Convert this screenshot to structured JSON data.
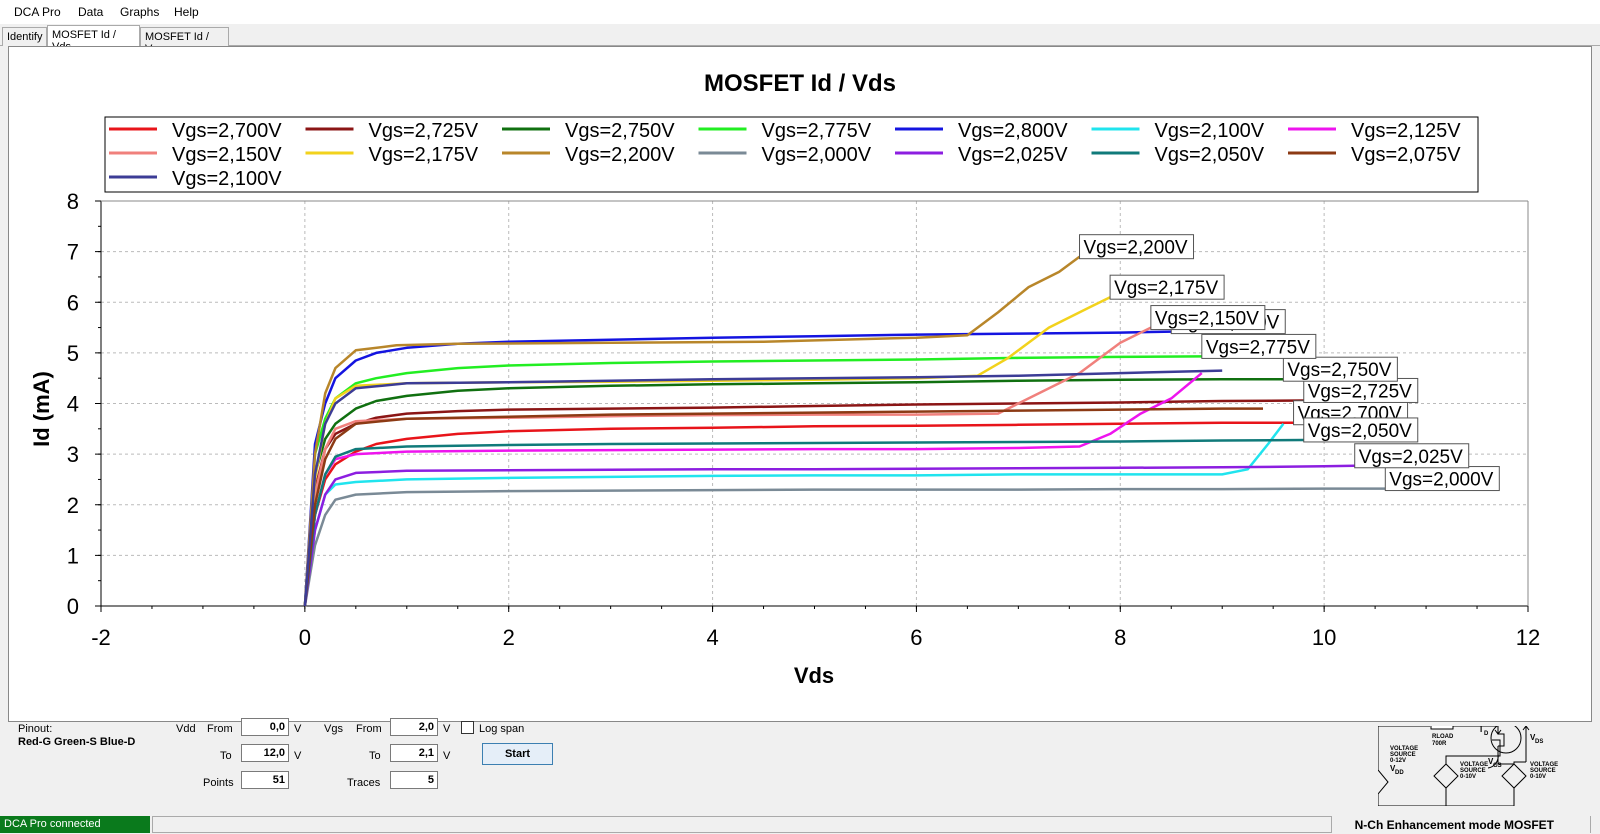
{
  "menu": {
    "items": [
      "DCA Pro",
      "Data",
      "Graphs",
      "Help"
    ]
  },
  "tabs": [
    "Identify",
    "MOSFET Id / Vds",
    "MOSFET Id / Vgs"
  ],
  "active_tab": 1,
  "chart_data": {
    "type": "line",
    "title": "MOSFET Id / Vds",
    "xlabel": "Vds",
    "ylabel": "Id (mA)",
    "xlim": [
      -2,
      12
    ],
    "ylim": [
      0,
      8
    ],
    "xticks": [
      -2,
      0,
      2,
      4,
      6,
      8,
      10,
      12
    ],
    "yticks": [
      0,
      1,
      2,
      3,
      4,
      5,
      6,
      7,
      8
    ],
    "grid": true,
    "legend_position": "top",
    "series": [
      {
        "name": "Vgs=2,700V",
        "color": "#e8141a",
        "label": "Vgs=2,700V",
        "x": [
          0,
          0.1,
          0.2,
          0.3,
          0.5,
          0.7,
          1,
          1.5,
          2,
          3,
          4,
          5,
          6,
          7,
          8,
          9,
          9.7
        ],
        "y": [
          0,
          1.8,
          2.5,
          2.8,
          3.05,
          3.2,
          3.3,
          3.4,
          3.45,
          3.5,
          3.52,
          3.55,
          3.56,
          3.58,
          3.6,
          3.62,
          3.62
        ]
      },
      {
        "name": "Vgs=2,725V",
        "color": "#8b1515",
        "label": "Vgs=2,725V",
        "x": [
          0,
          0.1,
          0.2,
          0.3,
          0.5,
          0.7,
          1,
          1.5,
          2,
          3,
          4,
          5,
          6,
          7,
          8,
          9,
          9.8
        ],
        "y": [
          0,
          2.3,
          3.1,
          3.4,
          3.6,
          3.72,
          3.8,
          3.85,
          3.88,
          3.9,
          3.92,
          3.95,
          3.98,
          4.0,
          4.02,
          4.05,
          4.06
        ]
      },
      {
        "name": "Vgs=2,750V",
        "color": "#107010",
        "label": "Vgs=2,750V",
        "x": [
          0,
          0.1,
          0.2,
          0.3,
          0.5,
          0.7,
          1,
          1.5,
          2,
          3,
          4,
          5,
          6,
          7,
          8,
          9,
          9.6
        ],
        "y": [
          0,
          2.6,
          3.3,
          3.6,
          3.9,
          4.05,
          4.15,
          4.25,
          4.3,
          4.35,
          4.38,
          4.4,
          4.42,
          4.45,
          4.47,
          4.48,
          4.48
        ]
      },
      {
        "name": "Vgs=2,775V",
        "color": "#22ee22",
        "label": "Vgs=2,775V",
        "x": [
          0,
          0.1,
          0.2,
          0.3,
          0.5,
          0.7,
          1,
          1.5,
          2,
          3,
          4,
          5,
          6,
          7,
          8,
          8.8
        ],
        "y": [
          0,
          3.0,
          3.7,
          4.1,
          4.4,
          4.5,
          4.6,
          4.7,
          4.75,
          4.8,
          4.83,
          4.85,
          4.87,
          4.9,
          4.92,
          4.93
        ]
      },
      {
        "name": "Vgs=2,800V",
        "color": "#1414e0",
        "label": "Vgs=2,800V",
        "x": [
          0,
          0.1,
          0.2,
          0.3,
          0.5,
          0.7,
          1,
          1.5,
          2,
          3,
          4,
          5,
          6,
          7,
          8,
          8.5
        ],
        "y": [
          0,
          3.2,
          4.0,
          4.5,
          4.85,
          5.0,
          5.1,
          5.18,
          5.22,
          5.26,
          5.3,
          5.33,
          5.36,
          5.38,
          5.4,
          5.42
        ]
      },
      {
        "name": "Vgs=2,100V",
        "color": "#20e4ee",
        "label": "",
        "x": [
          0,
          0.1,
          0.2,
          0.3,
          0.5,
          1,
          2,
          3,
          4,
          5,
          6,
          7,
          8,
          9,
          9.25,
          9.45,
          9.6
        ],
        "y": [
          0,
          1.5,
          2.2,
          2.4,
          2.45,
          2.5,
          2.53,
          2.55,
          2.57,
          2.58,
          2.58,
          2.6,
          2.6,
          2.6,
          2.7,
          3.2,
          3.6
        ]
      },
      {
        "name": "Vgs=2,125V",
        "color": "#ee14ee",
        "label": "",
        "x": [
          0,
          0.1,
          0.2,
          0.3,
          0.5,
          1,
          2,
          3,
          4,
          5,
          6,
          7,
          7.6,
          7.9,
          8.2,
          8.5,
          8.8
        ],
        "y": [
          0,
          1.8,
          2.6,
          2.9,
          3.0,
          3.05,
          3.07,
          3.08,
          3.09,
          3.1,
          3.1,
          3.12,
          3.15,
          3.4,
          3.8,
          4.1,
          4.6
        ]
      },
      {
        "name": "Vgs=2,150V",
        "color": "#f0807c",
        "label": "Vgs=2,150V",
        "x": [
          0,
          0.1,
          0.2,
          0.3,
          0.5,
          1,
          2,
          3,
          4,
          5,
          6,
          6.8,
          7.2,
          7.6,
          8,
          8.3
        ],
        "y": [
          0,
          2.2,
          3.1,
          3.5,
          3.65,
          3.7,
          3.72,
          3.75,
          3.77,
          3.78,
          3.78,
          3.8,
          4.2,
          4.6,
          5.2,
          5.5
        ]
      },
      {
        "name": "Vgs=2,175V",
        "color": "#f2d21c",
        "label": "Vgs=2,175V",
        "x": [
          0,
          0.1,
          0.2,
          0.3,
          0.5,
          1,
          2,
          3,
          4,
          5,
          6,
          6.6,
          6.9,
          7.3,
          7.7,
          7.9
        ],
        "y": [
          0,
          2.5,
          3.6,
          4.1,
          4.35,
          4.4,
          4.42,
          4.43,
          4.45,
          4.47,
          4.5,
          4.55,
          4.9,
          5.5,
          5.9,
          6.1
        ]
      },
      {
        "name": "Vgs=2,200V",
        "color": "#b8862a",
        "label": "Vgs=2,200V",
        "x": [
          0,
          0.1,
          0.2,
          0.3,
          0.5,
          0.9,
          1.5,
          3,
          4.5,
          6,
          6.5,
          6.8,
          7.1,
          7.4,
          7.6
        ],
        "y": [
          0,
          3.0,
          4.2,
          4.7,
          5.05,
          5.15,
          5.18,
          5.2,
          5.22,
          5.3,
          5.35,
          5.8,
          6.3,
          6.6,
          6.9
        ]
      },
      {
        "name": "Vgs=2,000V",
        "color": "#7a8a96",
        "label": "Vgs=2,000V",
        "x": [
          0,
          0.1,
          0.2,
          0.3,
          0.5,
          1,
          2,
          3,
          4,
          5,
          6,
          7,
          8,
          9,
          10,
          10.6
        ],
        "y": [
          0,
          1.2,
          1.8,
          2.1,
          2.2,
          2.25,
          2.27,
          2.28,
          2.29,
          2.3,
          2.3,
          2.3,
          2.31,
          2.31,
          2.32,
          2.32
        ]
      },
      {
        "name": "Vgs=2,025V",
        "color": "#8c1ee0",
        "label": "Vgs=2,025V",
        "x": [
          0,
          0.1,
          0.2,
          0.3,
          0.5,
          1,
          2,
          3,
          4,
          5,
          6,
          7,
          8,
          9,
          10,
          10.3
        ],
        "y": [
          0,
          1.5,
          2.2,
          2.5,
          2.63,
          2.67,
          2.68,
          2.69,
          2.7,
          2.7,
          2.71,
          2.72,
          2.73,
          2.74,
          2.76,
          2.77
        ]
      },
      {
        "name": "Vgs=2,050V",
        "color": "#107a7a",
        "label": "Vgs=2,050V",
        "x": [
          0,
          0.1,
          0.2,
          0.3,
          0.5,
          1,
          2,
          3,
          4,
          5,
          6,
          7,
          8,
          9,
          9.8
        ],
        "y": [
          0,
          1.8,
          2.6,
          2.95,
          3.1,
          3.15,
          3.18,
          3.2,
          3.21,
          3.22,
          3.23,
          3.24,
          3.25,
          3.27,
          3.28
        ]
      },
      {
        "name": "Vgs=2,075V",
        "color": "#8c3a14",
        "label": "",
        "x": [
          0,
          0.1,
          0.2,
          0.3,
          0.5,
          1,
          2,
          3,
          4,
          5,
          6,
          7,
          8,
          9,
          9.4
        ],
        "y": [
          0,
          2.0,
          2.9,
          3.3,
          3.6,
          3.7,
          3.74,
          3.78,
          3.8,
          3.82,
          3.84,
          3.86,
          3.88,
          3.9,
          3.9
        ]
      },
      {
        "name": "Vgs=2,100V",
        "color": "#3c3c96",
        "label": "",
        "x": [
          0,
          0.1,
          0.2,
          0.3,
          0.5,
          1,
          2,
          3,
          4,
          5,
          6,
          7,
          8,
          9
        ],
        "y": [
          0,
          2.6,
          3.6,
          4.0,
          4.3,
          4.4,
          4.42,
          4.45,
          4.48,
          4.5,
          4.52,
          4.55,
          4.6,
          4.65
        ]
      }
    ]
  },
  "controls": {
    "pinout_label": "Pinout:",
    "pinout_value": "Red-G Green-S Blue-D",
    "vdd_label": "Vdd",
    "from_label": "From",
    "to_label": "To",
    "points_label": "Points",
    "vdd_from": "0,0",
    "vdd_to": "12,0",
    "points": "51",
    "unit_v": "V",
    "vgs_label": "Vgs",
    "vgs_from": "2,0",
    "vgs_to": "2,1",
    "traces_label": "Traces",
    "traces": "5",
    "log_span_label": "Log span",
    "log_span_checked": false,
    "start_button": "Start"
  },
  "circuit": {
    "rload": "RLOAD",
    "rload_value": "700R",
    "id_label": "I",
    "id_sub": "D",
    "vds_label": "V",
    "vds_sub": "DS",
    "vgs_label": "V",
    "vgs_sub": "GS",
    "vs1": [
      "VOLTAGE",
      "SOURCE",
      "0-12V"
    ],
    "vdd_label": "V",
    "vdd_sub": "DD",
    "vs2": [
      "VOLTAGE",
      "SOURCE",
      "0-10V"
    ],
    "vs3": [
      "VOLTAGE",
      "SOURCE",
      "0-10V"
    ]
  },
  "status": {
    "connected": "DCA Pro connected",
    "device": "N-Ch Enhancement mode MOSFET"
  }
}
